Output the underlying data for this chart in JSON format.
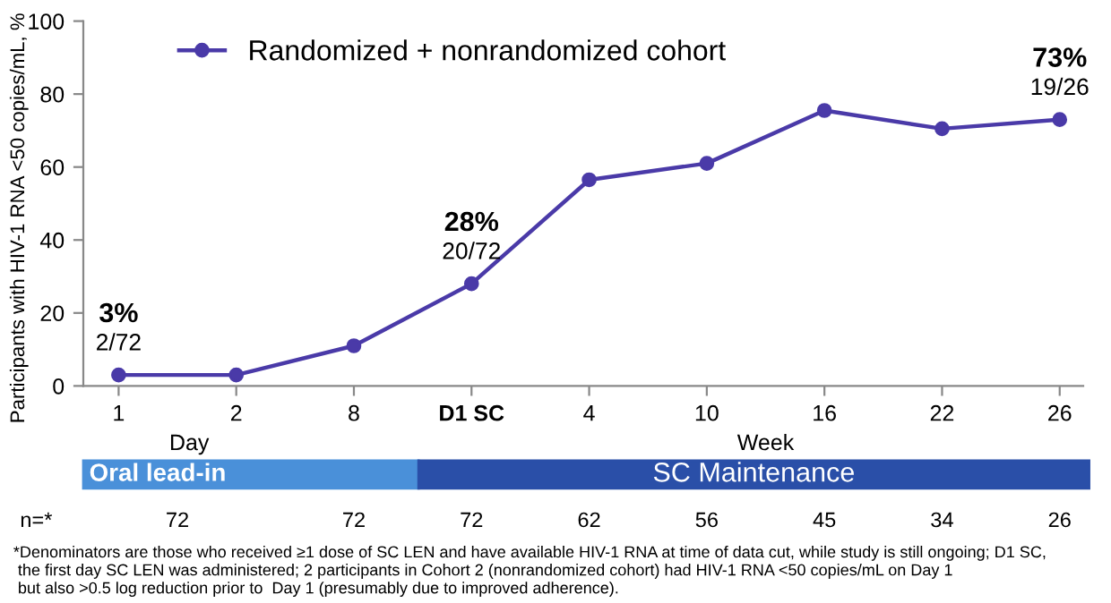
{
  "chart_data": {
    "type": "line",
    "categories": [
      "1",
      "2",
      "8",
      "D1 SC",
      "4",
      "10",
      "16",
      "22",
      "26"
    ],
    "series": [
      {
        "name": "Randomized + nonrandomized cohort",
        "color": "#4a3aa8",
        "values": [
          3,
          3,
          11,
          28,
          56.5,
          61,
          75.5,
          70.5,
          73
        ],
        "value_labels": [
          "3%",
          null,
          null,
          "28%",
          null,
          null,
          null,
          null,
          "73%"
        ]
      }
    ],
    "ylabel": "Participants with HIV-1 RNA <50 copies/mL, %",
    "ylim": [
      0,
      100
    ],
    "yticks": [
      0,
      20,
      40,
      60,
      80,
      100
    ],
    "marker": "circle",
    "line_style": "solid",
    "legend": "top left",
    "grid": false,
    "annotations": [
      {
        "text": "2/72",
        "x": "1",
        "y": 3
      },
      {
        "text": "20/72",
        "x": "D1 SC",
        "y": 28
      },
      {
        "text": "19/26",
        "x": "26",
        "y": 73
      },
      "Day",
      "Week",
      "Oral lead-in",
      "SC Maintenance",
      "n=*",
      "72",
      "72",
      "72",
      "62",
      "56",
      "45",
      "34",
      "26",
      "*Denominators are those who received ≥1 dose of SC LEN and have available HIV-1 RNA at time of data cut, while study is still ongoing; D1 SC,\n the first day SC LEN was administered; 2 participants in Cohort 2 (nonrandomized cohort) had HIV-1 RNA <50 copies/mL on Day 1\n but also >0.5 log reduction prior to  Day 1 (presumably due to improved adherence)."
    ]
  }
}
